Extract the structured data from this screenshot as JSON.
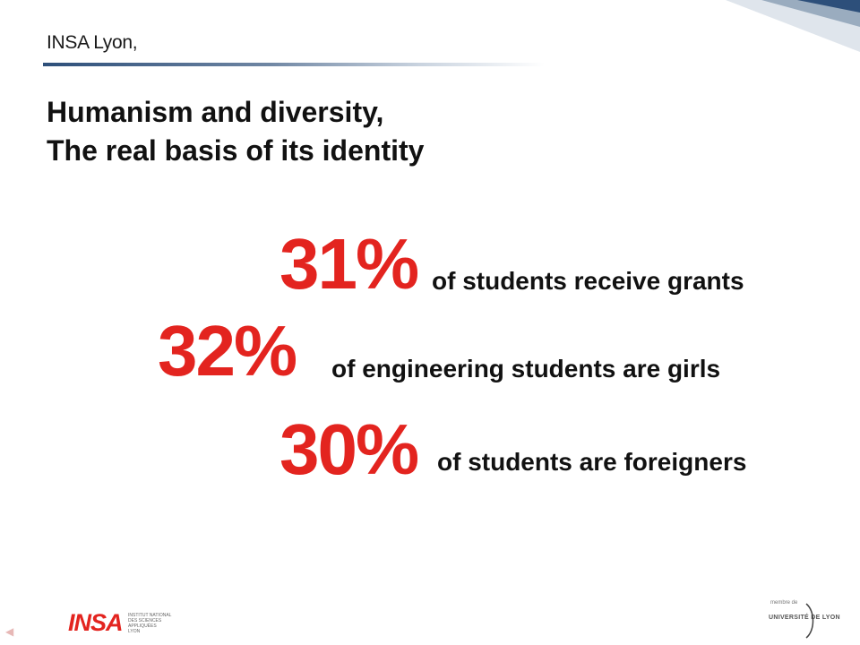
{
  "header": {
    "kicker": "INSA Lyon,",
    "title_line1": "Humanism and diversity,",
    "title_line2": "The real basis of its identity"
  },
  "stats": [
    {
      "value": "31%",
      "text": "of students receive grants"
    },
    {
      "value": "32%",
      "text": "of engineering students are girls"
    },
    {
      "value": "30%",
      "text": "of students are foreigners"
    }
  ],
  "footer": {
    "insa_logo": "INSA",
    "insa_subtitle": [
      "INSTITUT NATIONAL",
      "DES SCIENCES",
      "APPLIQUÉES",
      "LYON"
    ],
    "udl_member": "membre de",
    "udl_name": "UNIVERSITÉ DE LYON"
  },
  "colors": {
    "accent_red": "#e3241f",
    "rule_blue": "#2d4f7a",
    "text_dark": "#111111"
  }
}
